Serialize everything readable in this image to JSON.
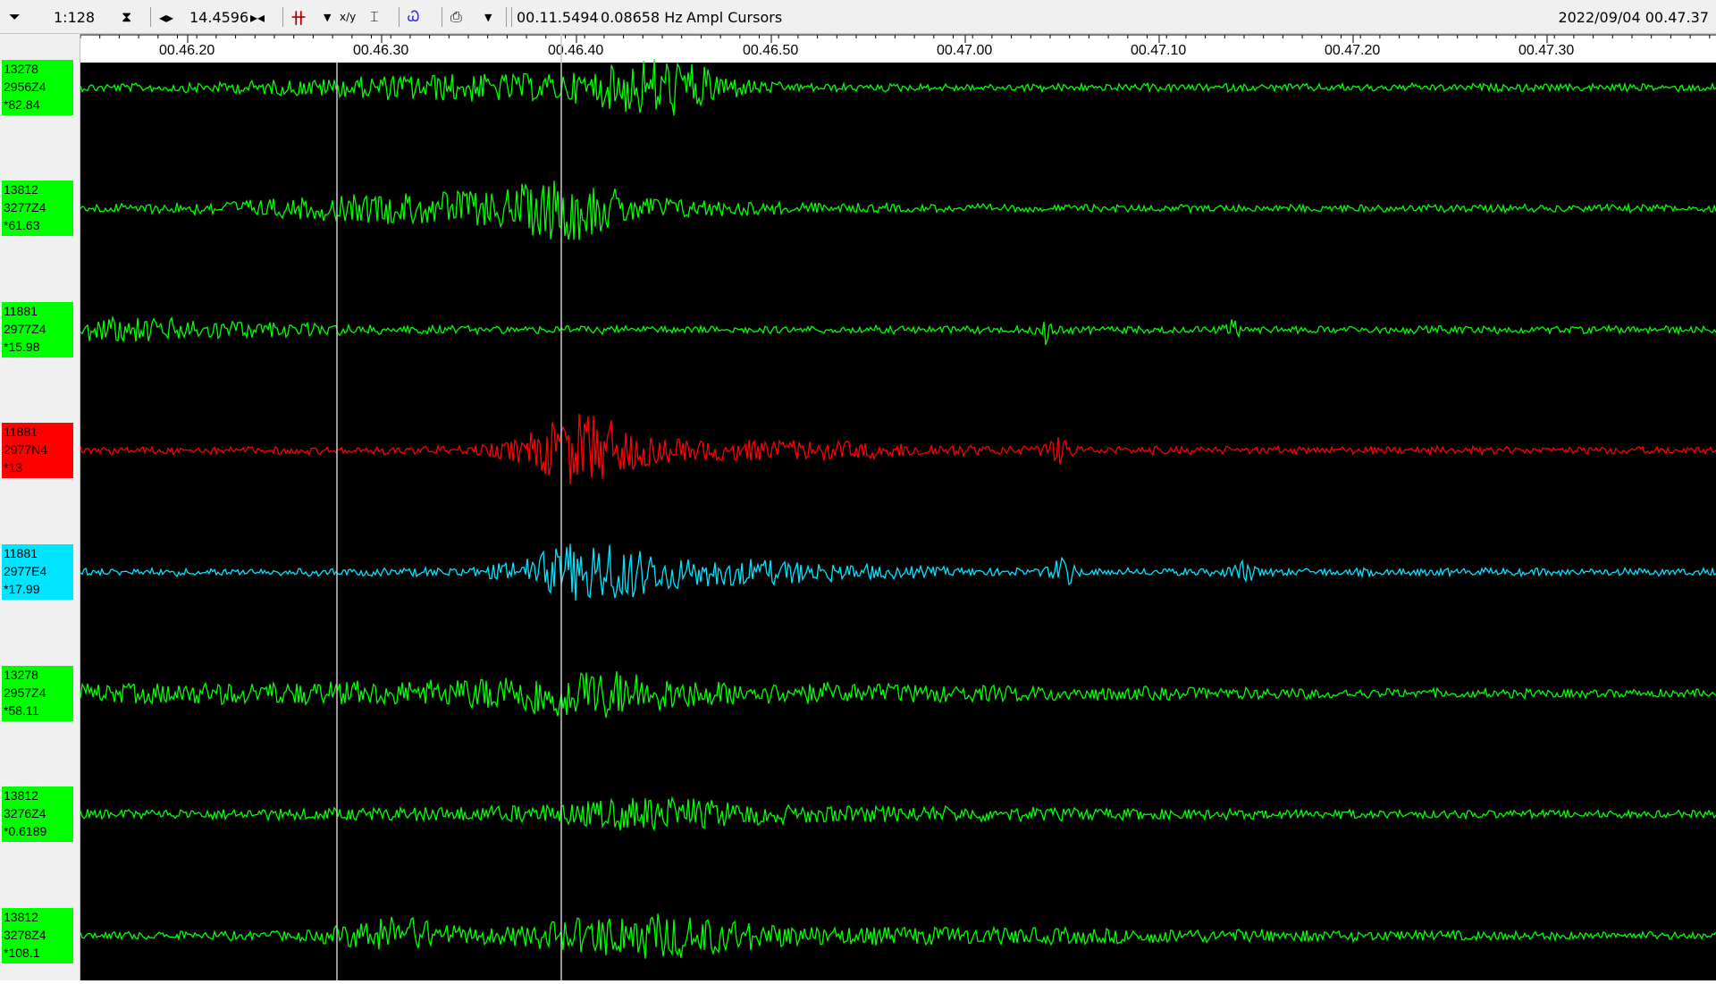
{
  "toolbar": {
    "scale": "1:128",
    "window_length": "14.4596",
    "cursor_time": "00.11.5494",
    "cursor_freq": "0.08658 Hz",
    "mode_label": "Ampl Cursors",
    "datetime": "2022/09/04 00.47.37"
  },
  "colors": {
    "green": "#00ff00",
    "red": "#ff0000",
    "cyan": "#00e5ff",
    "plot_bg": "#000000",
    "cursor": "#c8c8c8"
  },
  "time_axis": {
    "ticks": [
      "00.46.20",
      "00.46.30",
      "00.46.40",
      "00.46.50",
      "00.47.00",
      "00.47.10",
      "00.47.20",
      "00.47.30"
    ]
  },
  "traces": [
    {
      "line1": "13278",
      "line2": "2956Z4",
      "line3": "*82.84",
      "color": "green"
    },
    {
      "line1": "13812",
      "line2": "3277Z4",
      "line3": "*61.63",
      "color": "green"
    },
    {
      "line1": "11881",
      "line2": "2977Z4",
      "line3": "*15.98",
      "color": "green"
    },
    {
      "line1": "11881",
      "line2": "2977N4",
      "line3": "*13",
      "color": "red"
    },
    {
      "line1": "11881",
      "line2": "2977E4",
      "line3": "*17.99",
      "color": "cyan"
    },
    {
      "line1": "13278",
      "line2": "2957Z4",
      "line3": "*58.11",
      "color": "green"
    },
    {
      "line1": "13812",
      "line2": "3276Z4",
      "line3": "*0.6189",
      "color": "green"
    },
    {
      "line1": "13812",
      "line2": "3278Z4",
      "line3": "*108.1",
      "color": "green"
    }
  ]
}
